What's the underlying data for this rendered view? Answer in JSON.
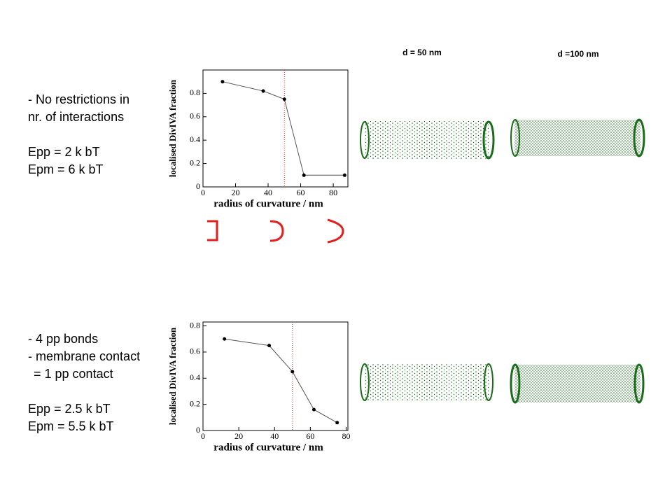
{
  "chart_data": [
    {
      "type": "line",
      "xlabel": "radius of curvature / nm",
      "ylabel": "localised DivIVA fraction",
      "x": [
        12,
        37,
        50,
        62,
        87
      ],
      "values": [
        0.9,
        0.82,
        0.75,
        0.1,
        0.1
      ],
      "color": "#555555",
      "xlim": [
        0,
        89
      ],
      "xticks": [
        0,
        20,
        40,
        60,
        80
      ],
      "ylim": [
        0,
        1.0
      ],
      "yticks": [
        0,
        0.2,
        0.4,
        0.6,
        0.8
      ],
      "vline": 50,
      "vline_color": "#e03030"
    },
    {
      "type": "line",
      "xlabel": "radius of curvature / nm",
      "ylabel": "localised DivIVA fraction",
      "x": [
        12,
        37,
        50,
        62,
        75
      ],
      "values": [
        0.7,
        0.65,
        0.45,
        0.16,
        0.06
      ],
      "color": "#555555",
      "xlim": [
        0,
        81
      ],
      "xticks": [
        0,
        20,
        40,
        60,
        80
      ],
      "ylim": [
        0,
        0.83
      ],
      "yticks": [
        0,
        0.2,
        0.4,
        0.6,
        0.8
      ],
      "vline": 50,
      "vline_color": "#e03030"
    }
  ],
  "column_labels": [
    "d = 50 nm",
    "d =100 nm"
  ],
  "text_blocks": [
    {
      "lines": [
        "- No restrictions in",
        "nr. of interactions",
        "Epp = 2 k bT",
        "Epm = 6 k bT"
      ]
    },
    {
      "lines": [
        "- 4 pp bonds",
        "- membrane contact",
        "= 1 pp contact",
        "Epp = 2.5 k bT",
        "Epm = 5.5 k bT"
      ]
    }
  ]
}
